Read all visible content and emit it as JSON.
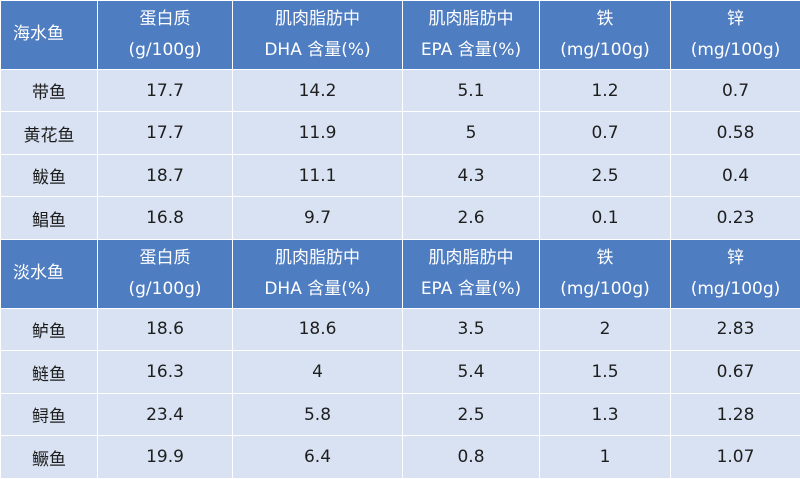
{
  "colors": {
    "header_bg": "#4F7DC1",
    "row_bg": "#D8E2F2",
    "header_text": "#FFFFFF"
  },
  "chart_data": {
    "type": "table",
    "sections": [
      {
        "group": "海水鱼",
        "columns": [
          {
            "line1": "蛋白质",
            "line2": "(g/100g)"
          },
          {
            "line1": "肌肉脂肪中",
            "line2": "DHA 含量(%)"
          },
          {
            "line1": "肌肉脂肪中",
            "line2": "EPA 含量(%)"
          },
          {
            "line1": "铁",
            "line2": "(mg/100g)"
          },
          {
            "line1": "锌",
            "line2": "(mg/100g)"
          }
        ],
        "rows": [
          {
            "name": "带鱼",
            "values": [
              "17.7",
              "14.2",
              "5.1",
              "1.2",
              "0.7"
            ]
          },
          {
            "name": "黄花鱼",
            "values": [
              "17.7",
              "11.9",
              "5",
              "0.7",
              "0.58"
            ]
          },
          {
            "name": "鲅鱼",
            "values": [
              "18.7",
              "11.1",
              "4.3",
              "2.5",
              "0.4"
            ]
          },
          {
            "name": "鲳鱼",
            "values": [
              "16.8",
              "9.7",
              "2.6",
              "0.1",
              "0.23"
            ]
          }
        ]
      },
      {
        "group": "淡水鱼",
        "columns": [
          {
            "line1": "蛋白质",
            "line2": "(g/100g)"
          },
          {
            "line1": "肌肉脂肪中",
            "line2": "DHA 含量(%)"
          },
          {
            "line1": "肌肉脂肪中",
            "line2": "EPA 含量(%)"
          },
          {
            "line1": "铁",
            "line2": "(mg/100g)"
          },
          {
            "line1": "锌",
            "line2": "(mg/100g)"
          }
        ],
        "rows": [
          {
            "name": "鲈鱼",
            "values": [
              "18.6",
              "18.6",
              "3.5",
              "2",
              "2.83"
            ]
          },
          {
            "name": "鲢鱼",
            "values": [
              "16.3",
              "4",
              "5.4",
              "1.5",
              "0.67"
            ]
          },
          {
            "name": "鲟鱼",
            "values": [
              "23.4",
              "5.8",
              "2.5",
              "1.3",
              "1.28"
            ]
          },
          {
            "name": "鳜鱼",
            "values": [
              "19.9",
              "6.4",
              "0.8",
              "1",
              "1.07"
            ]
          }
        ]
      }
    ]
  }
}
